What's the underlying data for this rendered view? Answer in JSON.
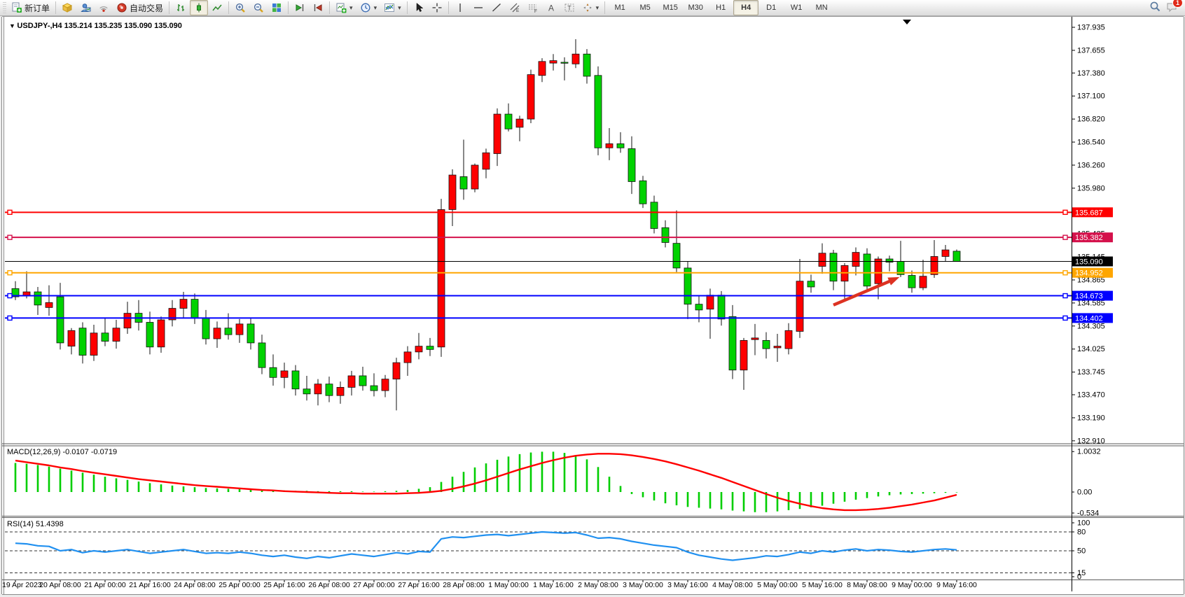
{
  "toolbar": {
    "new_order_label": "新订单",
    "autotrading_label": "自动交易",
    "notification_count": "1",
    "timeframes": [
      "M1",
      "M5",
      "M15",
      "M30",
      "H1",
      "H4",
      "D1",
      "W1",
      "MN"
    ],
    "active_timeframe": "H4",
    "icons": [
      "new-order",
      "market-cube",
      "profile-person",
      "signal",
      "autotrading-ball",
      "bar-chart-mode",
      "candlestick-mode",
      "line-chart-mode",
      "zoom-in",
      "zoom-out",
      "tile-windows",
      "auto-scroll",
      "chart-shift",
      "new-chart",
      "periods-clock",
      "indicators",
      "cursor",
      "crosshair",
      "vertical-line",
      "horizontal-line",
      "trendline",
      "equidistant-channel",
      "fibonacci",
      "text",
      "text-label",
      "arrows",
      "search",
      "chat-notification"
    ]
  },
  "chart": {
    "title": "USDJPY-,H4  135.214 135.235 135.090 135.090",
    "symbol": "USDJPY-",
    "period": "H4",
    "open": "135.214",
    "high": "135.235",
    "low": "135.090",
    "close": "135.090"
  },
  "indicators": {
    "macd": {
      "label": "MACD(12,26,9) -0.0107 -0.0719",
      "axis_labels": [
        "1.0032",
        "0.00",
        "-0.534"
      ]
    },
    "rsi": {
      "label": "RSI(14) 51.4398",
      "axis_labels": [
        "100",
        "80",
        "50",
        "15",
        "0"
      ]
    }
  },
  "hlines": [
    {
      "price": 135.687,
      "label": "135.687",
      "color": "#ff0000",
      "width": 2,
      "handles": true
    },
    {
      "price": 135.382,
      "label": "135.382",
      "color": "#d4114b",
      "width": 2,
      "handles": true
    },
    {
      "price": 135.09,
      "label": "135.090",
      "color": "#000000",
      "width": 1,
      "handles": false,
      "current": true
    },
    {
      "price": 134.952,
      "label": "134.952",
      "color": "#ffa600",
      "width": 2,
      "handles": true
    },
    {
      "price": 134.673,
      "label": "134.673",
      "color": "#0000ff",
      "width": 2,
      "handles": true
    },
    {
      "price": 134.402,
      "label": "134.402",
      "color": "#0000ff",
      "width": 2,
      "handles": true
    }
  ],
  "annotation_arrow": {
    "bar1": 73.0,
    "price1": 134.56,
    "bar2": 78.9,
    "price2": 134.9,
    "color": "#dd3222"
  },
  "chart_data": {
    "type": "candlestick",
    "symbol": "USDJPY-",
    "timeframe": "H4",
    "up_color": "#fe0000",
    "down_color": "#00d200",
    "wick_color": "#111111",
    "ylim": [
      132.8,
      138.05
    ],
    "price_axis_ticks": [
      "137.935",
      "137.655",
      "137.380",
      "137.100",
      "136.820",
      "136.540",
      "136.260",
      "135.980",
      "135.425",
      "135.145",
      "134.865",
      "134.585",
      "134.305",
      "134.025",
      "133.745",
      "133.470",
      "133.190",
      "132.910"
    ],
    "x_labels": [
      "19 Apr 2023",
      "20 Apr 08:00",
      "21 Apr 00:00",
      "21 Apr 16:00",
      "24 Apr 08:00",
      "25 Apr 00:00",
      "25 Apr 16:00",
      "26 Apr 08:00",
      "27 Apr 00:00",
      "27 Apr 16:00",
      "28 Apr 08:00",
      "1 May 00:00",
      "1 May 16:00",
      "2 May 08:00",
      "3 May 00:00",
      "3 May 16:00",
      "4 May 08:00",
      "5 May 00:00",
      "5 May 16:00",
      "8 May 08:00",
      "9 May 00:00",
      "9 May 16:00"
    ],
    "x_label_every_n_bars": 4,
    "candles": [
      [
        134.76,
        134.85,
        134.62,
        134.66
      ],
      [
        134.67,
        134.97,
        134.64,
        134.72
      ],
      [
        134.72,
        134.78,
        134.44,
        134.56
      ],
      [
        134.53,
        134.8,
        134.43,
        134.59
      ],
      [
        134.66,
        134.83,
        134.02,
        134.1
      ],
      [
        134.06,
        134.28,
        133.96,
        134.25
      ],
      [
        134.28,
        134.35,
        133.85,
        133.95
      ],
      [
        133.95,
        134.32,
        133.88,
        134.22
      ],
      [
        134.22,
        134.4,
        134.06,
        134.12
      ],
      [
        134.12,
        134.38,
        134.03,
        134.28
      ],
      [
        134.28,
        134.6,
        134.21,
        134.46
      ],
      [
        134.46,
        134.62,
        134.25,
        134.35
      ],
      [
        134.35,
        134.48,
        133.96,
        134.05
      ],
      [
        134.05,
        134.42,
        133.98,
        134.38
      ],
      [
        134.38,
        134.62,
        134.3,
        134.52
      ],
      [
        134.52,
        134.72,
        134.4,
        134.63
      ],
      [
        134.63,
        134.7,
        134.33,
        134.4
      ],
      [
        134.4,
        134.5,
        134.08,
        134.15
      ],
      [
        134.15,
        134.36,
        134.04,
        134.28
      ],
      [
        134.28,
        134.46,
        134.14,
        134.2
      ],
      [
        134.2,
        134.39,
        134.1,
        134.33
      ],
      [
        134.33,
        134.41,
        134.02,
        134.1
      ],
      [
        134.1,
        134.2,
        133.72,
        133.8
      ],
      [
        133.8,
        133.96,
        133.58,
        133.68
      ],
      [
        133.68,
        133.86,
        133.55,
        133.76
      ],
      [
        133.76,
        133.83,
        133.46,
        133.54
      ],
      [
        133.54,
        133.7,
        133.4,
        133.48
      ],
      [
        133.48,
        133.66,
        133.34,
        133.6
      ],
      [
        133.6,
        133.69,
        133.38,
        133.46
      ],
      [
        133.46,
        133.63,
        133.36,
        133.56
      ],
      [
        133.56,
        133.76,
        133.46,
        133.7
      ],
      [
        133.7,
        133.81,
        133.52,
        133.58
      ],
      [
        133.58,
        133.73,
        133.45,
        133.52
      ],
      [
        133.52,
        133.71,
        133.44,
        133.66
      ],
      [
        133.66,
        133.92,
        133.28,
        133.86
      ],
      [
        133.86,
        134.06,
        133.7,
        133.99
      ],
      [
        133.99,
        134.22,
        133.9,
        134.06
      ],
      [
        134.06,
        134.16,
        133.94,
        134.02
      ],
      [
        134.05,
        135.85,
        133.93,
        135.72
      ],
      [
        135.72,
        136.21,
        135.52,
        136.14
      ],
      [
        136.12,
        136.57,
        135.84,
        135.97
      ],
      [
        135.97,
        136.28,
        135.93,
        136.26
      ],
      [
        136.21,
        136.46,
        136.1,
        136.41
      ],
      [
        136.4,
        136.95,
        136.25,
        136.88
      ],
      [
        136.88,
        137.01,
        136.67,
        136.7
      ],
      [
        136.72,
        136.86,
        136.55,
        136.82
      ],
      [
        136.82,
        137.42,
        136.77,
        137.36
      ],
      [
        137.35,
        137.56,
        137.27,
        137.52
      ],
      [
        137.5,
        137.61,
        137.41,
        137.53
      ],
      [
        137.51,
        137.57,
        137.29,
        137.5
      ],
      [
        137.49,
        137.79,
        137.44,
        137.61
      ],
      [
        137.61,
        137.67,
        137.25,
        137.34
      ],
      [
        137.35,
        137.46,
        136.38,
        136.47
      ],
      [
        136.47,
        136.71,
        136.32,
        136.52
      ],
      [
        136.52,
        136.66,
        136.41,
        136.47
      ],
      [
        136.46,
        136.61,
        135.91,
        136.06
      ],
      [
        136.07,
        136.13,
        135.74,
        135.79
      ],
      [
        135.81,
        135.89,
        135.43,
        135.49
      ],
      [
        135.5,
        135.59,
        135.26,
        135.32
      ],
      [
        135.31,
        135.71,
        134.96,
        135.01
      ],
      [
        135.01,
        135.09,
        134.39,
        134.57
      ],
      [
        134.57,
        134.68,
        134.35,
        134.5
      ],
      [
        134.51,
        134.76,
        134.15,
        134.68
      ],
      [
        134.68,
        134.73,
        134.31,
        134.39
      ],
      [
        134.42,
        134.56,
        133.66,
        133.77
      ],
      [
        133.77,
        134.16,
        133.53,
        134.13
      ],
      [
        134.14,
        134.33,
        133.95,
        134.16
      ],
      [
        134.13,
        134.23,
        133.91,
        134.03
      ],
      [
        134.04,
        134.21,
        133.87,
        134.06
      ],
      [
        134.03,
        134.34,
        133.96,
        134.25
      ],
      [
        134.24,
        135.12,
        134.16,
        134.85
      ],
      [
        134.85,
        134.93,
        134.71,
        134.78
      ],
      [
        135.03,
        135.31,
        134.94,
        135.19
      ],
      [
        135.19,
        135.23,
        134.74,
        134.85
      ],
      [
        134.85,
        135.07,
        134.63,
        135.04
      ],
      [
        135.03,
        135.26,
        134.92,
        135.2
      ],
      [
        135.18,
        135.25,
        134.74,
        134.79
      ],
      [
        134.82,
        135.15,
        134.63,
        135.12
      ],
      [
        135.12,
        135.16,
        134.97,
        135.08
      ],
      [
        135.09,
        135.34,
        134.9,
        134.93
      ],
      [
        134.92,
        134.98,
        134.71,
        134.77
      ],
      [
        134.77,
        135.11,
        134.74,
        134.91
      ],
      [
        134.93,
        135.35,
        134.89,
        135.15
      ],
      [
        135.15,
        135.29,
        135.09,
        135.23
      ],
      [
        135.214,
        135.235,
        135.09,
        135.09
      ]
    ],
    "macd": {
      "histogram": [
        0.72,
        0.7,
        0.67,
        0.63,
        0.58,
        0.53,
        0.48,
        0.43,
        0.38,
        0.34,
        0.3,
        0.26,
        0.22,
        0.19,
        0.16,
        0.14,
        0.12,
        0.1,
        0.09,
        0.08,
        0.07,
        0.06,
        0.05,
        0.04,
        0.04,
        0.03,
        0.03,
        0.02,
        0.02,
        0.02,
        0.02,
        0.01,
        0.01,
        0.02,
        0.03,
        0.05,
        0.08,
        0.12,
        0.25,
        0.38,
        0.5,
        0.61,
        0.71,
        0.8,
        0.88,
        0.94,
        0.98,
        1.0,
        1.0,
        0.97,
        0.91,
        0.81,
        0.62,
        0.38,
        0.15,
        -0.05,
        -0.13,
        -0.21,
        -0.28,
        -0.33,
        -0.37,
        -0.39,
        -0.41,
        -0.43,
        -0.46,
        -0.48,
        -0.5,
        -0.5,
        -0.48,
        -0.45,
        -0.42,
        -0.38,
        -0.34,
        -0.29,
        -0.24,
        -0.19,
        -0.15,
        -0.11,
        -0.08,
        -0.06,
        -0.05,
        -0.04,
        -0.03,
        -0.02,
        -0.01
      ],
      "signal": [
        0.78,
        0.74,
        0.7,
        0.66,
        0.61,
        0.57,
        0.52,
        0.48,
        0.44,
        0.4,
        0.36,
        0.32,
        0.29,
        0.26,
        0.23,
        0.2,
        0.17,
        0.15,
        0.13,
        0.11,
        0.09,
        0.07,
        0.05,
        0.04,
        0.02,
        0.01,
        0.0,
        -0.01,
        -0.02,
        -0.03,
        -0.03,
        -0.04,
        -0.04,
        -0.04,
        -0.04,
        -0.03,
        -0.02,
        0.0,
        0.03,
        0.08,
        0.14,
        0.21,
        0.29,
        0.38,
        0.47,
        0.56,
        0.64,
        0.72,
        0.79,
        0.85,
        0.9,
        0.93,
        0.95,
        0.95,
        0.94,
        0.91,
        0.87,
        0.82,
        0.76,
        0.69,
        0.61,
        0.53,
        0.44,
        0.35,
        0.25,
        0.15,
        0.05,
        -0.05,
        -0.14,
        -0.22,
        -0.29,
        -0.35,
        -0.4,
        -0.43,
        -0.45,
        -0.45,
        -0.44,
        -0.42,
        -0.39,
        -0.35,
        -0.31,
        -0.26,
        -0.21,
        -0.14,
        -0.07
      ],
      "values_text": [
        "-0.0107",
        "-0.0719"
      ]
    },
    "rsi": {
      "values": [
        62,
        61,
        58,
        57,
        50,
        52,
        47,
        50,
        48,
        50,
        52,
        49,
        46,
        48,
        50,
        52,
        49,
        46,
        47,
        46,
        48,
        46,
        43,
        41,
        43,
        40,
        38,
        41,
        39,
        42,
        45,
        43,
        41,
        44,
        47,
        45,
        49,
        48,
        69,
        72,
        71,
        73,
        75,
        76,
        74,
        76,
        78,
        80,
        79,
        78,
        79,
        75,
        70,
        71,
        69,
        65,
        62,
        59,
        57,
        55,
        48,
        43,
        40,
        37,
        35,
        37,
        39,
        42,
        41,
        44,
        48,
        46,
        50,
        48,
        51,
        53,
        50,
        52,
        51,
        49,
        48,
        50,
        52,
        53,
        51.44
      ],
      "levels": [
        80,
        50,
        15
      ],
      "current": "51.4398"
    }
  }
}
